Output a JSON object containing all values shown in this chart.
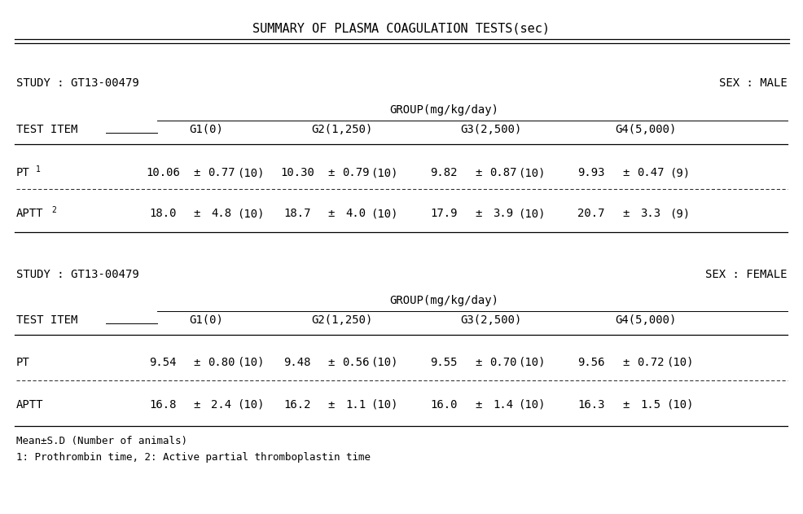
{
  "title": "SUMMARY OF PLASMA COAGULATION TESTS(sec)",
  "study": "STUDY : GT13-00479",
  "sex_male": "SEX : MALE",
  "sex_female": "SEX : FEMALE",
  "group_label": "GROUP(mg/kg/day)",
  "test_item_label": "TEST ITEM",
  "groups": [
    "G1(0)",
    "G2(1,250)",
    "G3(2,500)",
    "G4(5,000)"
  ],
  "male_pt": [
    [
      "10.06",
      "0.77",
      "(10)"
    ],
    [
      "10.30",
      "0.79",
      "(10)"
    ],
    [
      "9.82",
      "0.87",
      "(10)"
    ],
    [
      "9.93",
      "0.47",
      "(9)"
    ]
  ],
  "male_aptt": [
    [
      "18.0",
      "4.8",
      "(10)"
    ],
    [
      "18.7",
      "4.0",
      "(10)"
    ],
    [
      "17.9",
      "3.9",
      "(10)"
    ],
    [
      "20.7",
      "3.3",
      "(9)"
    ]
  ],
  "female_pt": [
    [
      "9.54",
      "0.80",
      "(10)"
    ],
    [
      "9.48",
      "0.56",
      "(10)"
    ],
    [
      "9.55",
      "0.70",
      "(10)"
    ],
    [
      "9.56",
      "0.72",
      "(10)"
    ]
  ],
  "female_aptt": [
    [
      "16.8",
      "2.4",
      "(10)"
    ],
    [
      "16.2",
      "1.1",
      "(10)"
    ],
    [
      "16.0",
      "1.4",
      "(10)"
    ],
    [
      "16.3",
      "1.5",
      "(10)"
    ]
  ],
  "footnote1": "Mean±S.D (Number of animals)",
  "footnote2": "1: Prothrombin time, 2: Active partial thromboplastin time",
  "bg_color": "#ffffff",
  "text_color": "#000000",
  "font_size": 10.0,
  "title_font_size": 11.0,
  "fig_width": 9.87,
  "fig_height": 6.31,
  "dpi": 100
}
